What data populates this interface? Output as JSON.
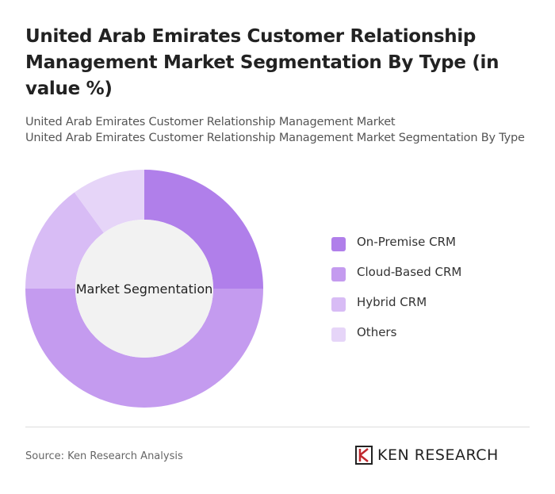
{
  "chart_data": {
    "type": "pie",
    "title": "United Arab Emirates Customer Relationship Management Market Segmentation By Type (in value %)",
    "subtitle": [
      "United Arab Emirates Customer Relationship Management Market",
      "United Arab Emirates Customer Relationship Management Market Segmentation By Type"
    ],
    "center_label": "Market Segmentation",
    "categories": [
      "On-Premise CRM",
      "Cloud-Based CRM",
      "Hybrid CRM",
      "Others"
    ],
    "values": [
      25,
      50,
      15,
      10
    ],
    "colors": [
      "#b07fea",
      "#c49bef",
      "#d8bcf5",
      "#e6d5f8"
    ],
    "source": "Source: Ken Research Analysis",
    "brand": "KEN RESEARCH"
  }
}
